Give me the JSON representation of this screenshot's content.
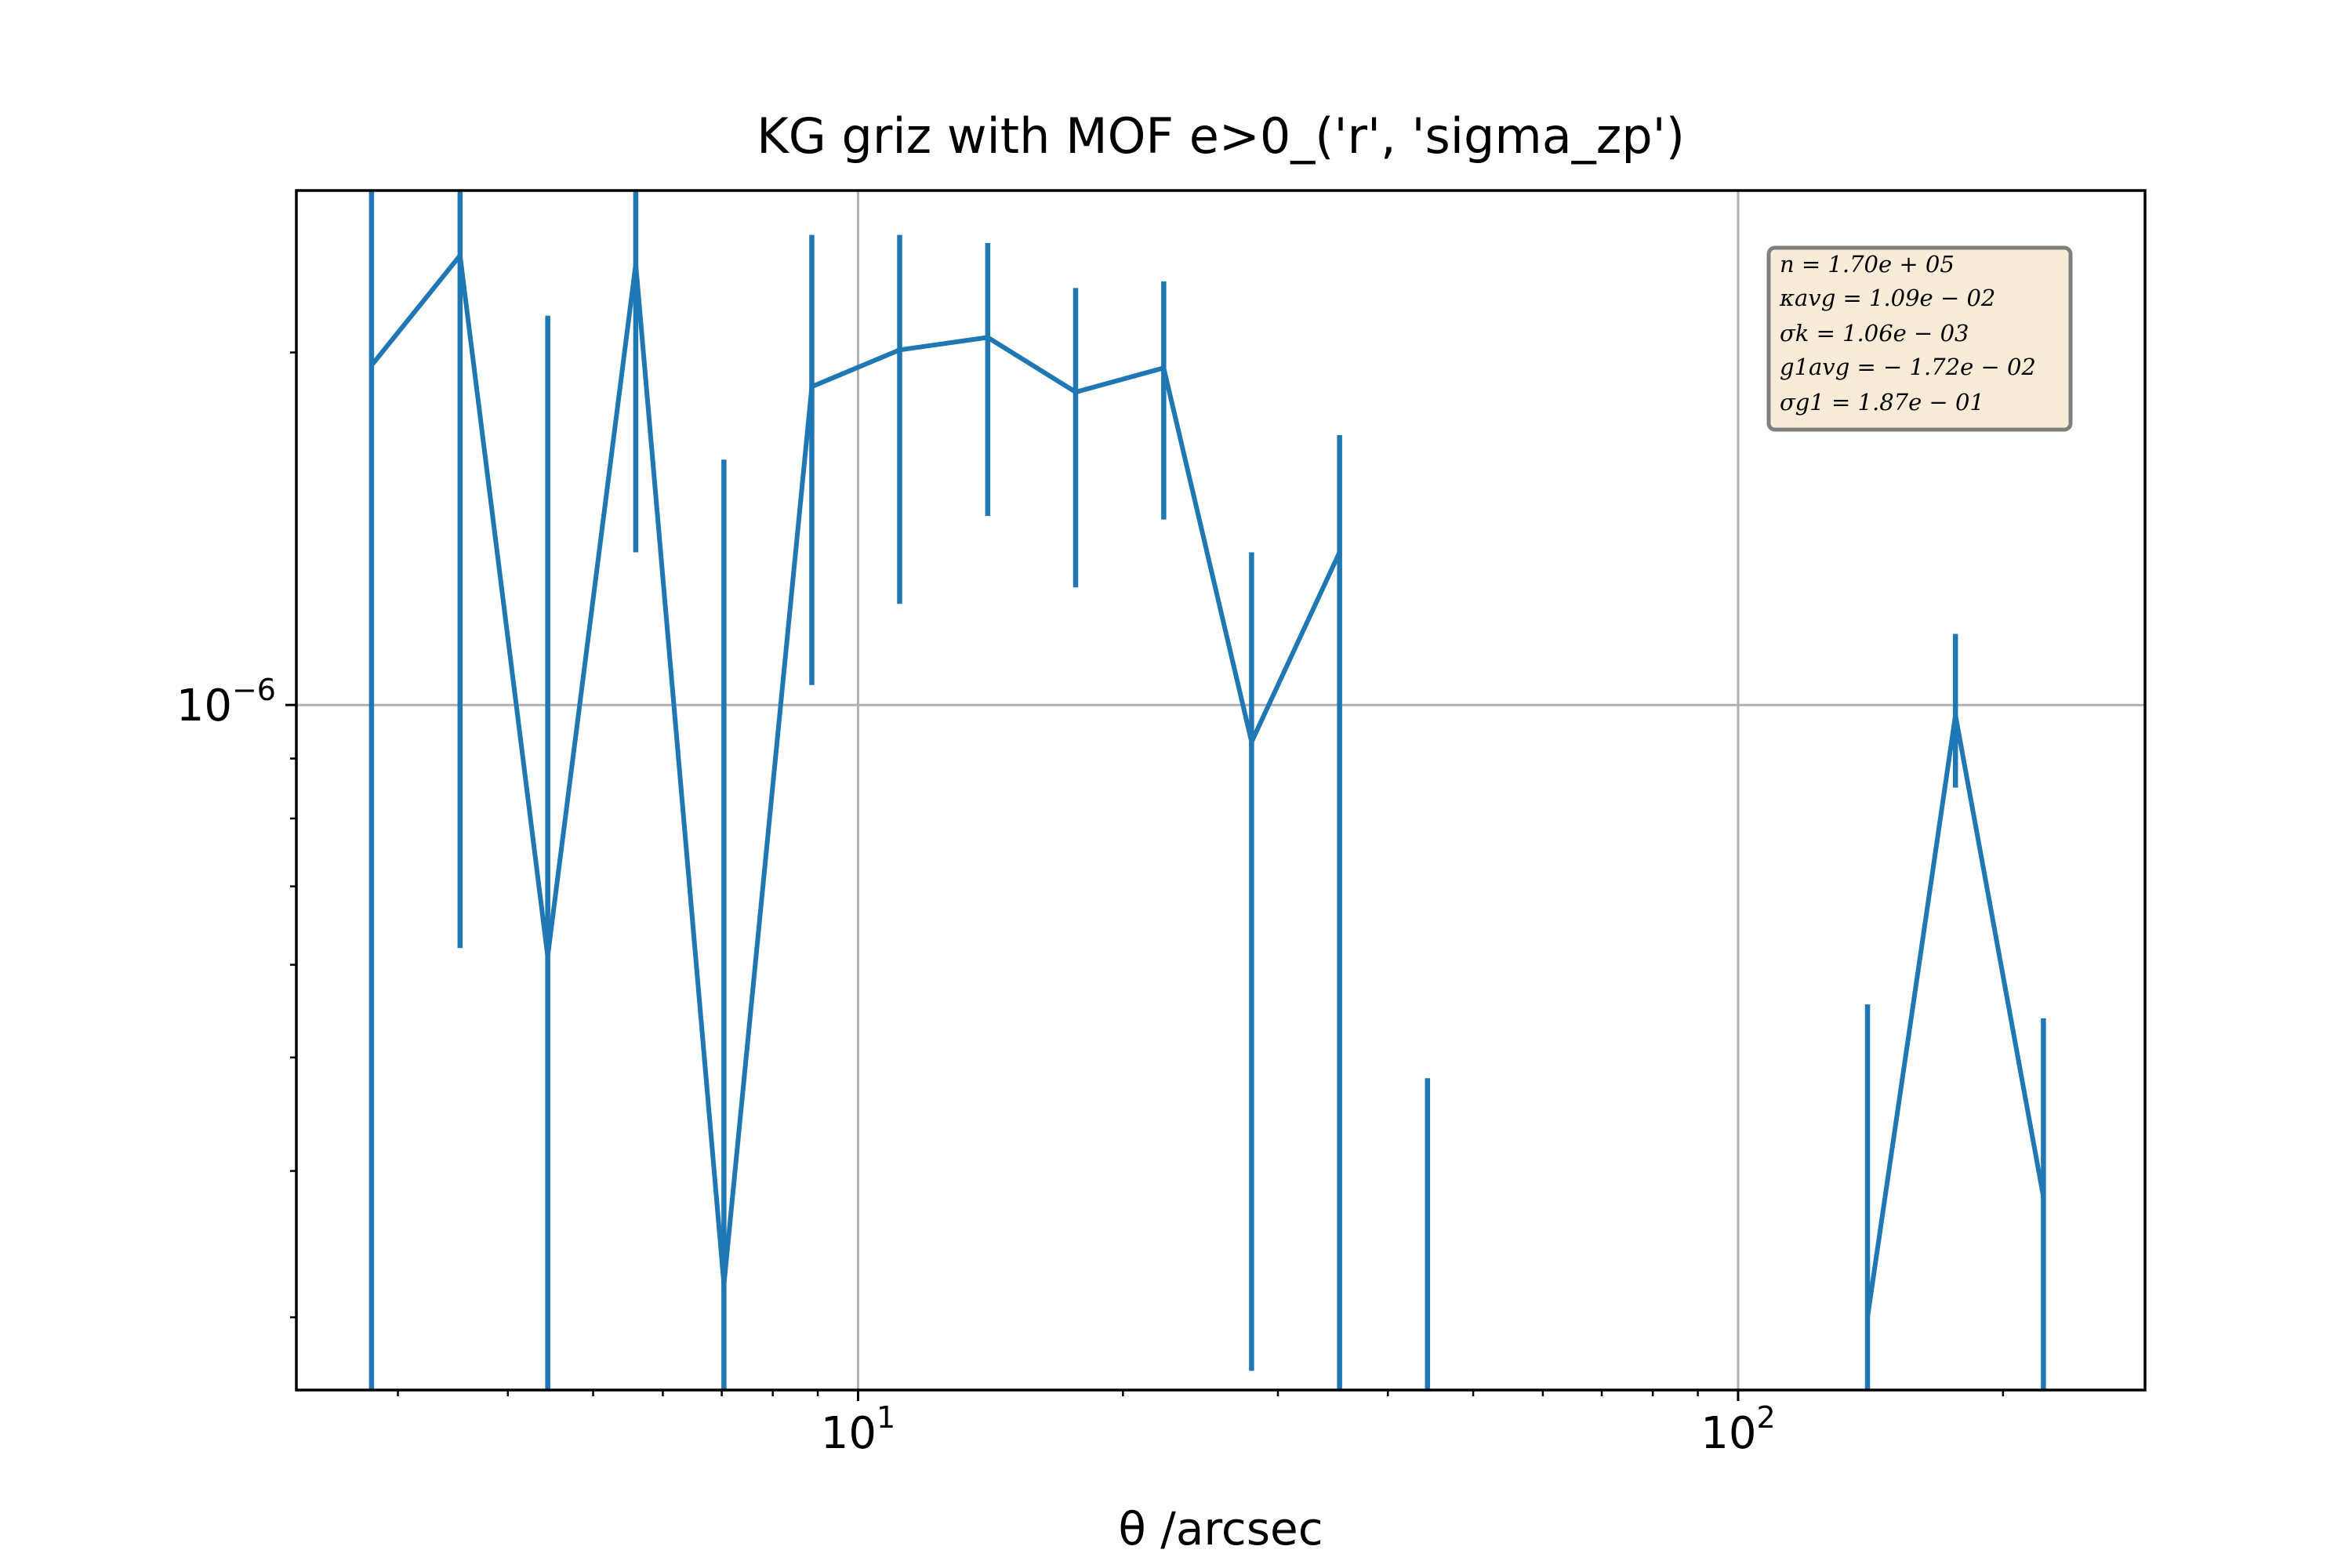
{
  "chart_data": {
    "type": "line",
    "title": "KG griz with MOF e>0_('r', 'sigma_zp')",
    "xlabel": "θ /arcsec",
    "ylabel": "",
    "xscale": "log",
    "yscale": "log",
    "xlim": [
      2.3,
      290
    ],
    "ylim": [
      2.6e-07,
      2.75e-06
    ],
    "grid": true,
    "x_ticks": [
      {
        "value": 10,
        "base": "10",
        "exp": "1"
      },
      {
        "value": 100,
        "base": "10",
        "exp": "2"
      }
    ],
    "y_ticks": [
      {
        "value": 1e-06,
        "base": "10",
        "exp": "−6"
      }
    ],
    "series": [
      {
        "color": "#1f77b4",
        "points": [
          {
            "x": 2.8,
            "y": 1.95e-06,
            "ylo": 2.6e-07,
            "yhi": 3.55e-06
          },
          {
            "x": 3.53,
            "y": 2.42e-06,
            "ylo": 6.2e-07,
            "yhi": 3.7e-06
          },
          {
            "x": 4.44,
            "y": 6.1e-07,
            "ylo": 2.6e-07,
            "yhi": 2.15e-06
          },
          {
            "x": 5.59,
            "y": 2.38e-06,
            "ylo": 1.35e-06,
            "yhi": 3.25e-06
          },
          {
            "x": 7.04,
            "y": 3.2e-07,
            "ylo": 2.6e-07,
            "yhi": 1.62e-06
          },
          {
            "x": 8.86,
            "y": 1.87e-06,
            "ylo": 1.04e-06,
            "yhi": 2.52e-06
          },
          {
            "x": 11.15,
            "y": 2.01e-06,
            "ylo": 1.22e-06,
            "yhi": 2.52e-06
          },
          {
            "x": 14.04,
            "y": 2.06e-06,
            "ylo": 1.45e-06,
            "yhi": 2.48e-06
          },
          {
            "x": 17.67,
            "y": 1.85e-06,
            "ylo": 1.26e-06,
            "yhi": 2.27e-06
          },
          {
            "x": 22.25,
            "y": 1.94e-06,
            "ylo": 1.44e-06,
            "yhi": 2.3e-06
          },
          {
            "x": 28.0,
            "y": 9.3e-07,
            "ylo": 2.7e-07,
            "yhi": 1.35e-06
          },
          {
            "x": 35.25,
            "y": 1.35e-06,
            "ylo": 2.6e-07,
            "yhi": 1.7e-06
          },
          {
            "x": 44.37,
            "y": null,
            "ylo": 2.6e-07,
            "yhi": 4.8e-07
          },
          {
            "x": 140.3,
            "y": 3e-07,
            "ylo": 2.6e-07,
            "yhi": 5.55e-07
          },
          {
            "x": 176.6,
            "y": 9.8e-07,
            "ylo": 8.5e-07,
            "yhi": 1.15e-06
          },
          {
            "x": 222.3,
            "y": 3.8e-07,
            "ylo": 2.6e-07,
            "yhi": 5.4e-07
          }
        ]
      }
    ],
    "annotation": {
      "lines": [
        "n = 1.70e + 05",
        "κavg = 1.09e − 02",
        "σk = 1.06e − 03",
        "g1avg = − 1.72e − 02",
        "σg1 = 1.87e − 01"
      ],
      "background": "#f8ecd8",
      "border": "#7f7f7f"
    },
    "colors": {
      "series": "#1f77b4",
      "grid": "#b0b0b0"
    }
  }
}
